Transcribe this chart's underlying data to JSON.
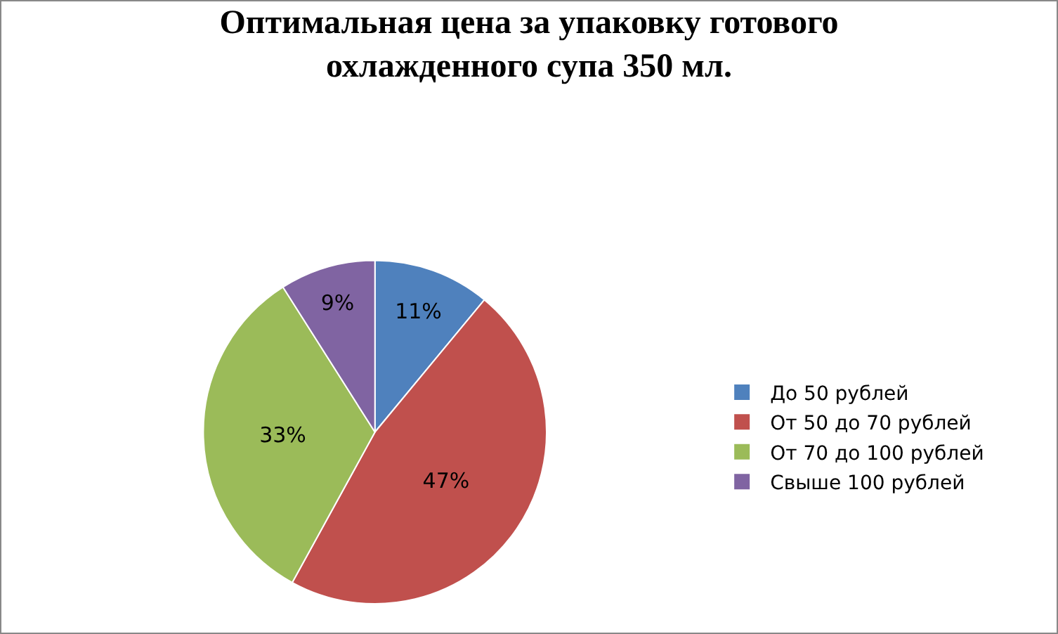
{
  "chart_data": {
    "type": "pie",
    "title": "Оптимальная цена за упаковку готового охлажденного супа 350 мл.",
    "categories": [
      "До 50 рублей",
      "От 50 до 70 рублей",
      "От 70 до 100 рублей",
      "Свыше 100 рублей"
    ],
    "values": [
      11,
      47,
      33,
      9
    ],
    "colors": [
      "#4f81bd",
      "#c0504d",
      "#9bbb59",
      "#8064a2"
    ],
    "value_labels": [
      "11%",
      "47%",
      "33%",
      "9%"
    ],
    "legend": "right"
  }
}
